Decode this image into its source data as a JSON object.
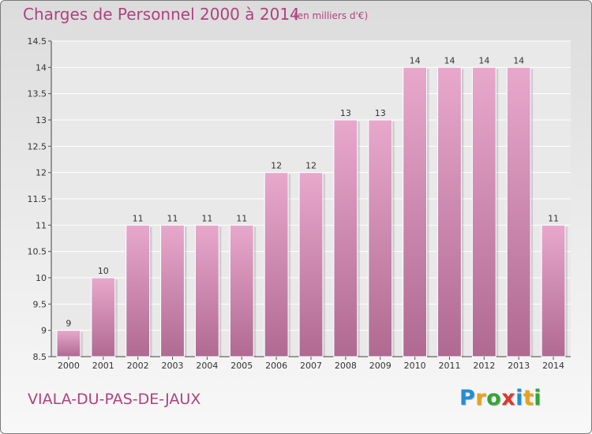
{
  "title": "Charges de Personnel 2000 à 2014",
  "subtitle": "(en milliers d'€)",
  "town": "VIALA-DU-PAS-DE-JAUX",
  "logo": {
    "text": "Proxiti",
    "letters": [
      "P",
      "r",
      "o",
      "x",
      "i",
      "t",
      "i"
    ],
    "colors": [
      "#1f8fd6",
      "#e8a21a",
      "#35a535",
      "#d93a2b",
      "#1f8fd6",
      "#e8a21a",
      "#35a535"
    ]
  },
  "colors": {
    "accent": "#b0417f",
    "bar_top": "#e8a8cc",
    "bar_bottom": "#b06a92"
  },
  "chart_data": {
    "type": "bar",
    "categories": [
      "2000",
      "2001",
      "2002",
      "2003",
      "2004",
      "2005",
      "2006",
      "2007",
      "2008",
      "2009",
      "2010",
      "2011",
      "2012",
      "2013",
      "2014"
    ],
    "values": [
      9,
      10,
      11,
      11,
      11,
      11,
      12,
      12,
      13,
      13,
      14,
      14,
      14,
      14,
      11
    ],
    "data_labels": [
      "9",
      "10",
      "11",
      "11",
      "11",
      "11",
      "12",
      "12",
      "13",
      "13",
      "14",
      "14",
      "14",
      "14",
      "11"
    ],
    "ylim": [
      8.5,
      14.5
    ],
    "yticks": [
      "8.5",
      "9",
      "9.5",
      "10",
      "10.5",
      "11",
      "11.5",
      "12",
      "12.5",
      "13",
      "13.5",
      "14",
      "14.5"
    ],
    "grid": true,
    "legend": "none",
    "xlabel": "",
    "ylabel": ""
  }
}
